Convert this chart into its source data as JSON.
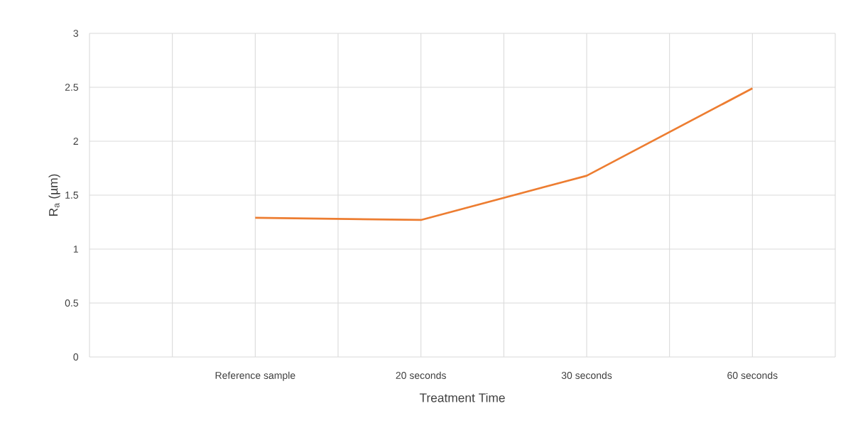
{
  "chart_data": {
    "type": "line",
    "xlabel": "Treatment Time",
    "ylabel": "R$_{a}$ (µm)",
    "categories": [
      null,
      null,
      "Reference sample",
      null,
      "20 seconds",
      null,
      "30 seconds",
      null,
      "60 seconds",
      null
    ],
    "series": [
      {
        "color": "#ed7d31",
        "values": [
          null,
          null,
          1.29,
          null,
          1.27,
          null,
          1.68,
          null,
          2.49,
          null
        ]
      }
    ],
    "ylim": [
      0,
      3
    ],
    "yticks": [
      0,
      0.5,
      1,
      1.5,
      2,
      2.5,
      3
    ],
    "grid": true,
    "legend": false,
    "marker": "none",
    "line_style": "solid"
  }
}
